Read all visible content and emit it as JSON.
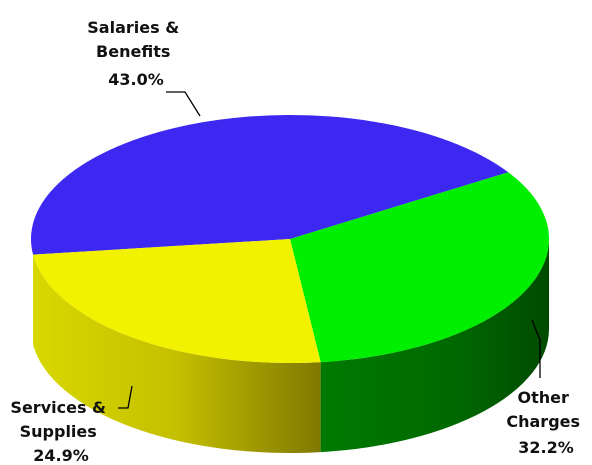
{
  "chart_data": {
    "type": "pie",
    "style": "3d",
    "legend": "none",
    "slices": [
      {
        "label_lines": [
          "Salaries &",
          "Benefits"
        ],
        "value": 43.0,
        "value_label": "43.0%",
        "color": "#3c28f0"
      },
      {
        "label_lines": [
          "Other",
          "Charges"
        ],
        "value": 32.2,
        "value_label": "32.2%",
        "color": "#00ee00"
      },
      {
        "label_lines": [
          "Services &",
          "Supplies"
        ],
        "value": 24.9,
        "value_label": "24.9%",
        "color": "#f2f200"
      }
    ]
  }
}
